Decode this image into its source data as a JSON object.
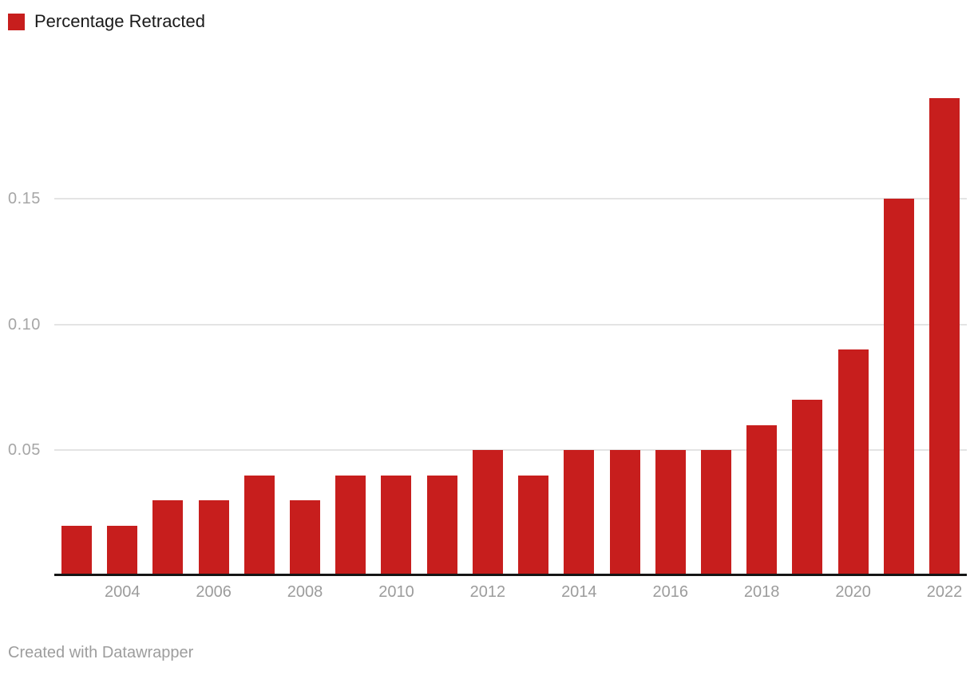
{
  "legend": {
    "label": "Percentage Retracted",
    "swatch_color": "#c71e1d"
  },
  "footer": {
    "text": "Created with Datawrapper"
  },
  "chart_data": {
    "type": "bar",
    "title": "",
    "xlabel": "",
    "ylabel": "",
    "series_name": "Percentage Retracted",
    "categories": [
      2003,
      2004,
      2005,
      2006,
      2007,
      2008,
      2009,
      2010,
      2011,
      2012,
      2013,
      2014,
      2015,
      2016,
      2017,
      2018,
      2019,
      2020,
      2021,
      2022
    ],
    "values": [
      0.02,
      0.02,
      0.03,
      0.03,
      0.04,
      0.03,
      0.04,
      0.04,
      0.04,
      0.05,
      0.04,
      0.05,
      0.05,
      0.05,
      0.05,
      0.06,
      0.07,
      0.09,
      0.15,
      0.19
    ],
    "ylim": [
      0,
      0.19
    ],
    "yticks": [
      0.05,
      0.1,
      0.15
    ],
    "ytick_labels": [
      "0.05",
      "0.10",
      "0.15"
    ],
    "xtick_labels": [
      "2004",
      "2006",
      "2008",
      "2010",
      "2012",
      "2014",
      "2016",
      "2018",
      "2020",
      "2022"
    ],
    "grid": "horizontal",
    "legend_position": "top-left",
    "bar_color": "#c71e1d",
    "grid_color": "#e4e4e4",
    "axis_line_color": "#161616",
    "tick_label_color": "#9c9c9c"
  }
}
